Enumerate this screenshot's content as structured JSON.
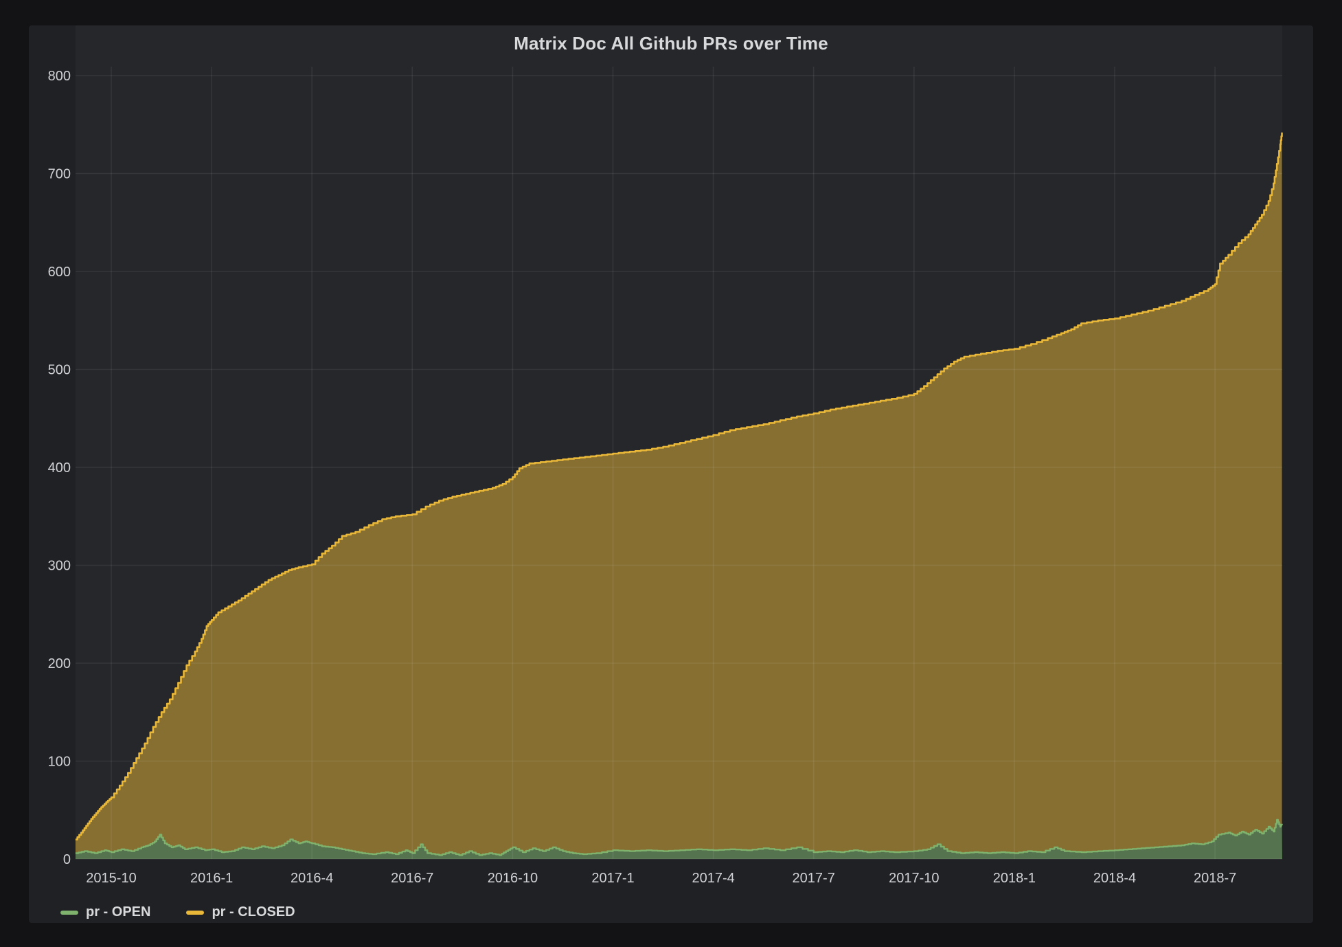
{
  "panel": {
    "title": "Matrix Doc All Github PRs over Time"
  },
  "legend": [
    {
      "label": "pr - OPEN",
      "color": "#7eb26d"
    },
    {
      "label": "pr - CLOSED",
      "color": "#eab839"
    }
  ],
  "colors": {
    "page_background": "#131316",
    "panel_background": "#1f2125",
    "plot_background": "#25272b",
    "grid": "rgba(255,255,255,0.07)",
    "axis_text": "#d0d2d6",
    "title_text": "#d8d9da",
    "open_line": "#7eb26d",
    "closed_line": "#eab839",
    "open_fill_alpha": 0.55,
    "closed_fill_alpha": 0.5
  },
  "chart_data": {
    "type": "area",
    "title": "Matrix Doc All Github PRs over Time",
    "xlabel": "",
    "ylabel": "",
    "ylim": [
      0,
      800
    ],
    "y_ticks": [
      0,
      100,
      200,
      300,
      400,
      500,
      600,
      700,
      800
    ],
    "grid": true,
    "legend_position": "bottom-left",
    "x_unit": "months since 2015-10",
    "x_range": [
      -1.07,
      35.0
    ],
    "x_ticks": [
      {
        "t": 0,
        "label": "2015-10"
      },
      {
        "t": 3,
        "label": "2016-1"
      },
      {
        "t": 6,
        "label": "2016-4"
      },
      {
        "t": 9,
        "label": "2016-7"
      },
      {
        "t": 12,
        "label": "2016-10"
      },
      {
        "t": 15,
        "label": "2017-1"
      },
      {
        "t": 18,
        "label": "2017-4"
      },
      {
        "t": 21,
        "label": "2017-7"
      },
      {
        "t": 24,
        "label": "2017-10"
      },
      {
        "t": 27,
        "label": "2018-1"
      },
      {
        "t": 30,
        "label": "2018-4"
      },
      {
        "t": 33,
        "label": "2018-7"
      }
    ],
    "series": [
      {
        "name": "pr - CLOSED",
        "color": "#eab839",
        "fill_alpha": 0.5,
        "points": [
          [
            -1.07,
            20
          ],
          [
            -0.9,
            27
          ],
          [
            -0.75,
            34
          ],
          [
            -0.6,
            41
          ],
          [
            -0.45,
            47
          ],
          [
            -0.3,
            53
          ],
          [
            -0.15,
            58
          ],
          [
            0,
            63
          ],
          [
            0.25,
            75
          ],
          [
            0.5,
            88
          ],
          [
            0.75,
            103
          ],
          [
            1,
            118
          ],
          [
            1.25,
            135
          ],
          [
            1.5,
            150
          ],
          [
            1.75,
            163
          ],
          [
            2,
            180
          ],
          [
            2.25,
            198
          ],
          [
            2.5,
            212
          ],
          [
            2.7,
            225
          ],
          [
            2.85,
            238
          ],
          [
            3,
            244
          ],
          [
            3.2,
            252
          ],
          [
            3.5,
            258
          ],
          [
            3.8,
            264
          ],
          [
            4.1,
            271
          ],
          [
            4.4,
            278
          ],
          [
            4.7,
            285
          ],
          [
            5,
            290
          ],
          [
            5.3,
            295
          ],
          [
            5.6,
            298
          ],
          [
            6,
            301
          ],
          [
            6.3,
            312
          ],
          [
            6.6,
            320
          ],
          [
            6.9,
            330
          ],
          [
            7.3,
            334
          ],
          [
            7.7,
            341
          ],
          [
            8.1,
            347
          ],
          [
            8.5,
            350
          ],
          [
            9,
            352
          ],
          [
            9.4,
            360
          ],
          [
            9.8,
            366
          ],
          [
            10.2,
            370
          ],
          [
            10.6,
            373
          ],
          [
            11,
            376
          ],
          [
            11.4,
            379
          ],
          [
            11.7,
            383
          ],
          [
            12,
            390
          ],
          [
            12.2,
            399
          ],
          [
            12.5,
            404
          ],
          [
            13,
            406
          ],
          [
            13.5,
            408
          ],
          [
            14,
            410
          ],
          [
            14.5,
            412
          ],
          [
            15,
            414
          ],
          [
            15.5,
            416
          ],
          [
            16,
            418
          ],
          [
            16.5,
            421
          ],
          [
            17,
            425
          ],
          [
            17.5,
            429
          ],
          [
            18,
            433
          ],
          [
            18.5,
            438
          ],
          [
            19,
            441
          ],
          [
            19.5,
            444
          ],
          [
            20,
            448
          ],
          [
            20.5,
            452
          ],
          [
            21,
            455
          ],
          [
            21.5,
            459
          ],
          [
            22,
            462
          ],
          [
            22.5,
            465
          ],
          [
            23,
            468
          ],
          [
            23.5,
            471
          ],
          [
            24,
            475
          ],
          [
            24.3,
            483
          ],
          [
            24.6,
            492
          ],
          [
            24.9,
            501
          ],
          [
            25.2,
            508
          ],
          [
            25.5,
            513
          ],
          [
            26,
            516
          ],
          [
            26.5,
            519
          ],
          [
            27,
            521
          ],
          [
            27.5,
            526
          ],
          [
            28,
            532
          ],
          [
            28.4,
            537
          ],
          [
            28.7,
            541
          ],
          [
            29,
            547
          ],
          [
            29.5,
            550
          ],
          [
            30,
            552
          ],
          [
            30.5,
            556
          ],
          [
            31,
            560
          ],
          [
            31.5,
            565
          ],
          [
            32,
            570
          ],
          [
            32.4,
            576
          ],
          [
            32.8,
            582
          ],
          [
            33,
            587
          ],
          [
            33.15,
            608
          ],
          [
            33.4,
            617
          ],
          [
            33.7,
            629
          ],
          [
            34,
            638
          ],
          [
            34.2,
            648
          ],
          [
            34.4,
            658
          ],
          [
            34.6,
            672
          ],
          [
            34.75,
            690
          ],
          [
            34.85,
            710
          ],
          [
            34.95,
            730
          ],
          [
            35,
            742
          ]
        ]
      },
      {
        "name": "pr - OPEN",
        "color": "#7eb26d",
        "fill_alpha": 0.55,
        "points": [
          [
            -1.07,
            6
          ],
          [
            -0.8,
            8
          ],
          [
            -0.5,
            6
          ],
          [
            -0.2,
            9
          ],
          [
            0,
            7
          ],
          [
            0.3,
            10
          ],
          [
            0.6,
            8
          ],
          [
            0.9,
            12
          ],
          [
            1.1,
            14
          ],
          [
            1.3,
            18
          ],
          [
            1.45,
            25
          ],
          [
            1.6,
            16
          ],
          [
            1.8,
            12
          ],
          [
            2,
            14
          ],
          [
            2.2,
            10
          ],
          [
            2.5,
            12
          ],
          [
            2.8,
            9
          ],
          [
            3,
            10
          ],
          [
            3.3,
            7
          ],
          [
            3.6,
            8
          ],
          [
            3.9,
            12
          ],
          [
            4.2,
            10
          ],
          [
            4.5,
            13
          ],
          [
            4.8,
            11
          ],
          [
            5.1,
            14
          ],
          [
            5.35,
            20
          ],
          [
            5.6,
            16
          ],
          [
            5.8,
            18
          ],
          [
            6,
            16
          ],
          [
            6.3,
            13
          ],
          [
            6.6,
            12
          ],
          [
            6.9,
            10
          ],
          [
            7.2,
            8
          ],
          [
            7.5,
            6
          ],
          [
            7.8,
            5
          ],
          [
            8.2,
            7
          ],
          [
            8.5,
            5
          ],
          [
            8.8,
            9
          ],
          [
            9,
            6
          ],
          [
            9.25,
            15
          ],
          [
            9.45,
            6
          ],
          [
            9.8,
            4
          ],
          [
            10.1,
            7
          ],
          [
            10.4,
            4
          ],
          [
            10.7,
            8
          ],
          [
            11,
            4
          ],
          [
            11.3,
            6
          ],
          [
            11.6,
            4
          ],
          [
            11.8,
            8
          ],
          [
            12,
            12
          ],
          [
            12.3,
            7
          ],
          [
            12.6,
            11
          ],
          [
            12.9,
            8
          ],
          [
            13.2,
            12
          ],
          [
            13.5,
            8
          ],
          [
            13.8,
            6
          ],
          [
            14.1,
            5
          ],
          [
            14.5,
            6
          ],
          [
            15,
            9
          ],
          [
            15.5,
            8
          ],
          [
            16,
            9
          ],
          [
            16.5,
            8
          ],
          [
            17,
            9
          ],
          [
            17.5,
            10
          ],
          [
            18,
            9
          ],
          [
            18.5,
            10
          ],
          [
            19,
            9
          ],
          [
            19.5,
            11
          ],
          [
            20,
            9
          ],
          [
            20.5,
            12
          ],
          [
            21,
            7
          ],
          [
            21.4,
            8
          ],
          [
            21.8,
            7
          ],
          [
            22.2,
            9
          ],
          [
            22.6,
            7
          ],
          [
            23,
            8
          ],
          [
            23.4,
            7
          ],
          [
            24,
            8
          ],
          [
            24.4,
            10
          ],
          [
            24.7,
            15
          ],
          [
            25,
            8
          ],
          [
            25.4,
            6
          ],
          [
            25.8,
            7
          ],
          [
            26.2,
            6
          ],
          [
            26.6,
            7
          ],
          [
            27,
            6
          ],
          [
            27.4,
            8
          ],
          [
            27.8,
            7
          ],
          [
            28.2,
            12
          ],
          [
            28.5,
            8
          ],
          [
            29,
            7
          ],
          [
            29.5,
            8
          ],
          [
            30,
            9
          ],
          [
            30.4,
            10
          ],
          [
            30.8,
            11
          ],
          [
            31.2,
            12
          ],
          [
            31.6,
            13
          ],
          [
            32,
            14
          ],
          [
            32.3,
            16
          ],
          [
            32.6,
            15
          ],
          [
            32.9,
            18
          ],
          [
            33.1,
            25
          ],
          [
            33.4,
            27
          ],
          [
            33.6,
            24
          ],
          [
            33.8,
            28
          ],
          [
            34,
            25
          ],
          [
            34.2,
            30
          ],
          [
            34.4,
            26
          ],
          [
            34.6,
            33
          ],
          [
            34.75,
            28
          ],
          [
            34.85,
            40
          ],
          [
            34.95,
            33
          ],
          [
            35,
            36
          ]
        ]
      }
    ]
  }
}
